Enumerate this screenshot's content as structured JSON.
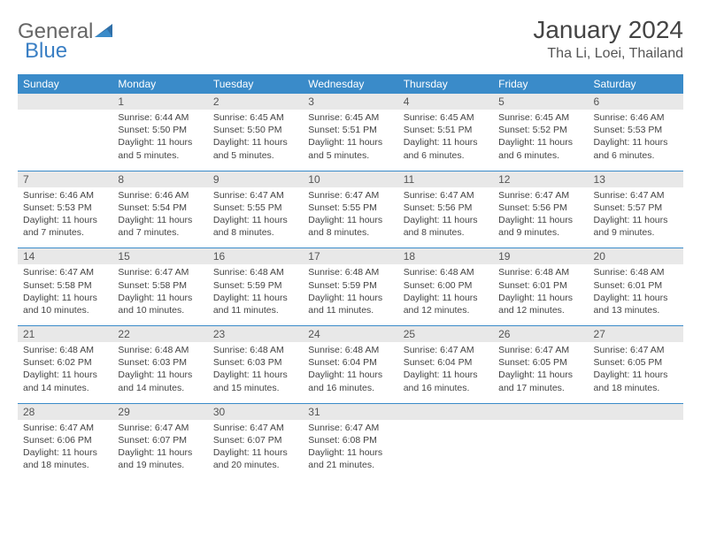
{
  "logo": {
    "part1": "General",
    "part2": "Blue"
  },
  "title": "January 2024",
  "location": "Tha Li, Loei, Thailand",
  "colors": {
    "header_bg": "#3a8bc9",
    "header_text": "#ffffff",
    "date_bg": "#e8e8e8",
    "divider": "#3a8bc9",
    "text": "#444444",
    "logo_accent": "#3a7fc4"
  },
  "dayNames": [
    "Sunday",
    "Monday",
    "Tuesday",
    "Wednesday",
    "Thursday",
    "Friday",
    "Saturday"
  ],
  "weeks": [
    {
      "dates": [
        "",
        "1",
        "2",
        "3",
        "4",
        "5",
        "6"
      ],
      "info": [
        "",
        "Sunrise: 6:44 AM\nSunset: 5:50 PM\nDaylight: 11 hours and 5 minutes.",
        "Sunrise: 6:45 AM\nSunset: 5:50 PM\nDaylight: 11 hours and 5 minutes.",
        "Sunrise: 6:45 AM\nSunset: 5:51 PM\nDaylight: 11 hours and 5 minutes.",
        "Sunrise: 6:45 AM\nSunset: 5:51 PM\nDaylight: 11 hours and 6 minutes.",
        "Sunrise: 6:45 AM\nSunset: 5:52 PM\nDaylight: 11 hours and 6 minutes.",
        "Sunrise: 6:46 AM\nSunset: 5:53 PM\nDaylight: 11 hours and 6 minutes."
      ]
    },
    {
      "dates": [
        "7",
        "8",
        "9",
        "10",
        "11",
        "12",
        "13"
      ],
      "info": [
        "Sunrise: 6:46 AM\nSunset: 5:53 PM\nDaylight: 11 hours and 7 minutes.",
        "Sunrise: 6:46 AM\nSunset: 5:54 PM\nDaylight: 11 hours and 7 minutes.",
        "Sunrise: 6:47 AM\nSunset: 5:55 PM\nDaylight: 11 hours and 8 minutes.",
        "Sunrise: 6:47 AM\nSunset: 5:55 PM\nDaylight: 11 hours and 8 minutes.",
        "Sunrise: 6:47 AM\nSunset: 5:56 PM\nDaylight: 11 hours and 8 minutes.",
        "Sunrise: 6:47 AM\nSunset: 5:56 PM\nDaylight: 11 hours and 9 minutes.",
        "Sunrise: 6:47 AM\nSunset: 5:57 PM\nDaylight: 11 hours and 9 minutes."
      ]
    },
    {
      "dates": [
        "14",
        "15",
        "16",
        "17",
        "18",
        "19",
        "20"
      ],
      "info": [
        "Sunrise: 6:47 AM\nSunset: 5:58 PM\nDaylight: 11 hours and 10 minutes.",
        "Sunrise: 6:47 AM\nSunset: 5:58 PM\nDaylight: 11 hours and 10 minutes.",
        "Sunrise: 6:48 AM\nSunset: 5:59 PM\nDaylight: 11 hours and 11 minutes.",
        "Sunrise: 6:48 AM\nSunset: 5:59 PM\nDaylight: 11 hours and 11 minutes.",
        "Sunrise: 6:48 AM\nSunset: 6:00 PM\nDaylight: 11 hours and 12 minutes.",
        "Sunrise: 6:48 AM\nSunset: 6:01 PM\nDaylight: 11 hours and 12 minutes.",
        "Sunrise: 6:48 AM\nSunset: 6:01 PM\nDaylight: 11 hours and 13 minutes."
      ]
    },
    {
      "dates": [
        "21",
        "22",
        "23",
        "24",
        "25",
        "26",
        "27"
      ],
      "info": [
        "Sunrise: 6:48 AM\nSunset: 6:02 PM\nDaylight: 11 hours and 14 minutes.",
        "Sunrise: 6:48 AM\nSunset: 6:03 PM\nDaylight: 11 hours and 14 minutes.",
        "Sunrise: 6:48 AM\nSunset: 6:03 PM\nDaylight: 11 hours and 15 minutes.",
        "Sunrise: 6:48 AM\nSunset: 6:04 PM\nDaylight: 11 hours and 16 minutes.",
        "Sunrise: 6:47 AM\nSunset: 6:04 PM\nDaylight: 11 hours and 16 minutes.",
        "Sunrise: 6:47 AM\nSunset: 6:05 PM\nDaylight: 11 hours and 17 minutes.",
        "Sunrise: 6:47 AM\nSunset: 6:05 PM\nDaylight: 11 hours and 18 minutes."
      ]
    },
    {
      "dates": [
        "28",
        "29",
        "30",
        "31",
        "",
        "",
        ""
      ],
      "info": [
        "Sunrise: 6:47 AM\nSunset: 6:06 PM\nDaylight: 11 hours and 18 minutes.",
        "Sunrise: 6:47 AM\nSunset: 6:07 PM\nDaylight: 11 hours and 19 minutes.",
        "Sunrise: 6:47 AM\nSunset: 6:07 PM\nDaylight: 11 hours and 20 minutes.",
        "Sunrise: 6:47 AM\nSunset: 6:08 PM\nDaylight: 11 hours and 21 minutes.",
        "",
        "",
        ""
      ]
    }
  ]
}
